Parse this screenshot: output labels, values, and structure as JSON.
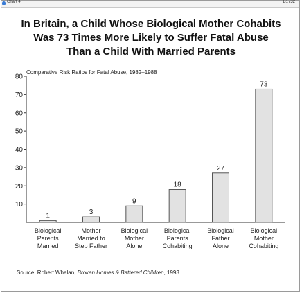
{
  "header": {
    "chart_label": "Chart 4",
    "chart_id": "B1732",
    "icon": "bell-icon"
  },
  "source": {
    "prefix": "Source:",
    "author": " Robert Whelan, ",
    "work": "Broken Homes & Battered Children",
    "suffix": ", 1993."
  },
  "colors": {
    "bar_fill": "#e2e2e2",
    "bar_stroke": "#555555",
    "axis": "#333333",
    "bell": "#3a7bd5"
  },
  "chart_data": {
    "type": "bar",
    "title_lines": [
      "In Britain, a Child Whose Biological Mother Cohabits",
      "Was 73 Times More Likely to Suffer Fatal Abuse",
      "Than a Child With Married Parents"
    ],
    "subtitle": "Comparative Risk Ratios for Fatal Abuse, 1982–1988",
    "categories": [
      [
        "Biological",
        "Parents",
        "Married"
      ],
      [
        "Mother",
        "Married to",
        "Step Father"
      ],
      [
        "Biological",
        "Mother",
        "Alone"
      ],
      [
        "Biological",
        "Parents",
        "Cohabiting"
      ],
      [
        "Biological",
        "Father",
        "Alone"
      ],
      [
        "Biological",
        "Mother",
        "Cohabiting"
      ]
    ],
    "values": [
      1,
      3,
      9,
      18,
      27,
      73
    ],
    "data_labels": [
      "1",
      "3",
      "9",
      "18",
      "27",
      "73"
    ],
    "yticks": [
      10,
      20,
      30,
      40,
      50,
      60,
      70,
      80
    ],
    "ylim": [
      0,
      80
    ],
    "grid": false,
    "legend": "none"
  }
}
